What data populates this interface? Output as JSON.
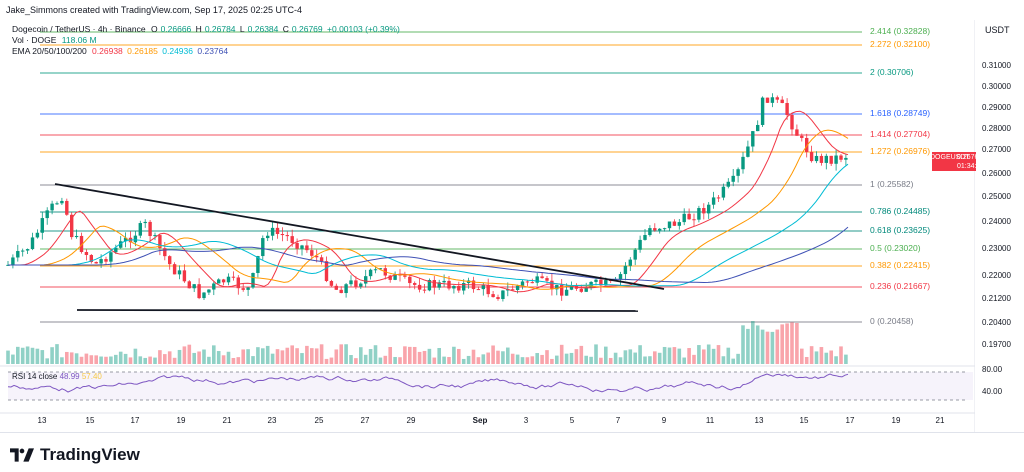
{
  "header": {
    "credit": "Jake_Simmons created with TradingView.com, Sep 17, 2025 02:25 UTC-4"
  },
  "legend": {
    "symbol": "Dogecoin / TetherUS · 4h · Binance",
    "o_label": "O",
    "o": "0.26666",
    "h_label": "H",
    "h": "0.26784",
    "l_label": "L",
    "l": "0.26384",
    "c_label": "C",
    "c": "0.26769",
    "change": "+0.00103 (+0.39%)",
    "vol_label": "Vol · DOGE",
    "vol": "118.06 M",
    "ema_label": "EMA 20/50/100/200",
    "ema20": "0.26938",
    "ema50": "0.26185",
    "ema100": "0.24936",
    "ema200": "0.23764"
  },
  "price_axis": {
    "title": "USDT",
    "ticks": [
      "0.31000",
      "0.30000",
      "0.29000",
      "0.28000",
      "0.27000",
      "0.26000",
      "0.25000",
      "0.24000",
      "0.23000",
      "0.22000",
      "0.21200",
      "0.20400",
      "0.19700"
    ],
    "rsi_ticks": [
      "80.00",
      "40.00"
    ],
    "current_symbol": "DOGEUSDT",
    "current_price": "0.26769",
    "countdown": "01:34:14"
  },
  "fib_levels": [
    {
      "label": "2.414 (0.32828)",
      "color": "#4caf50"
    },
    {
      "label": "2.272 (0.32100)",
      "color": "#ff9800"
    },
    {
      "label": "2 (0.30706)",
      "color": "#089981"
    },
    {
      "label": "1.618 (0.28749)",
      "color": "#2962ff"
    },
    {
      "label": "1.414 (0.27704)",
      "color": "#f23645"
    },
    {
      "label": "1.272 (0.26976)",
      "color": "#ff9800"
    },
    {
      "label": "1 (0.25582)",
      "color": "#787b86"
    },
    {
      "label": "0.786 (0.24485)",
      "color": "#00897b"
    },
    {
      "label": "0.618 (0.23625)",
      "color": "#00897b"
    },
    {
      "label": "0.5 (0.23020)",
      "color": "#4caf50"
    },
    {
      "label": "0.382 (0.22415)",
      "color": "#ff9800"
    },
    {
      "label": "0.236 (0.21667)",
      "color": "#f23645"
    },
    {
      "label": "0 (0.20458)",
      "color": "#787b86"
    }
  ],
  "rsi": {
    "label": "RSI 14 close",
    "value": "48.99",
    "ma_value": "57.40"
  },
  "x_axis": [
    "13",
    "15",
    "17",
    "19",
    "21",
    "23",
    "25",
    "27",
    "29",
    "Sep",
    "3",
    "5",
    "7",
    "9",
    "11",
    "13",
    "15",
    "17",
    "19",
    "21"
  ],
  "colors": {
    "up": "#089981",
    "down": "#f23645",
    "ema20": "#f23645",
    "ema50": "#ff9800",
    "ema100": "#00bcd4",
    "ema200": "#3f51b5",
    "rsi": "#7e57c2"
  },
  "footer": {
    "brand": "TradingView"
  }
}
